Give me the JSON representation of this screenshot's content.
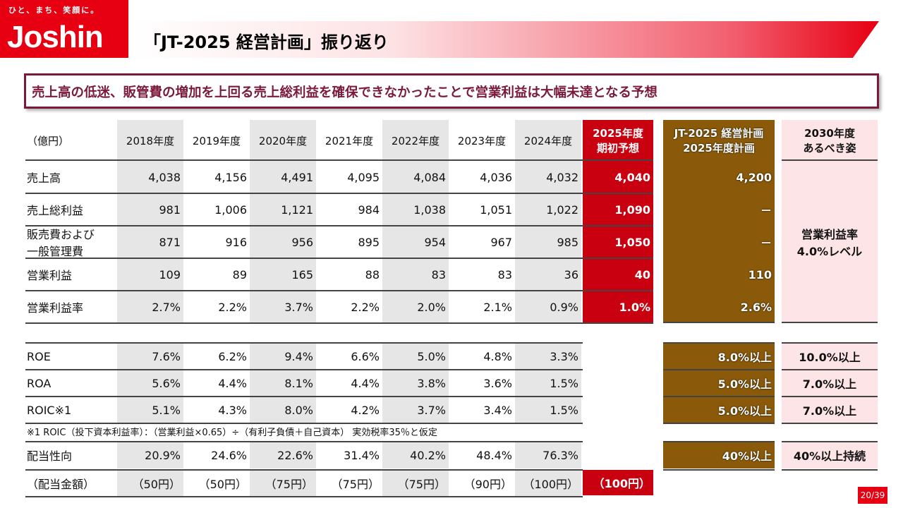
{
  "logo": {
    "tagline": "ひと、まち、笑顔に。",
    "name": "Joshin"
  },
  "title": "「JT-2025 経営計画」振り返り",
  "banner": "売上高の低迷、販管費の増加を上回る売上総利益を確保できなかったことで営業利益は大幅未達となる予想",
  "unit_label": "（億円）",
  "year_headers": [
    "2018年度",
    "2019年度",
    "2020年度",
    "2021年度",
    "2022年度",
    "2023年度",
    "2024年度"
  ],
  "forecast_header": [
    "2025年度",
    "期初予想"
  ],
  "plan_header": [
    "JT-2025 経営計画",
    "2025年度計画"
  ],
  "ideal_header": [
    "2030年度",
    "あるべき姿"
  ],
  "rows_top": [
    {
      "label": [
        "売上高"
      ],
      "values": [
        "4,038",
        "4,156",
        "4,491",
        "4,095",
        "4,084",
        "4,036",
        "4,032"
      ],
      "forecast": "4,040",
      "plan": "4,200"
    },
    {
      "label": [
        "売上総利益"
      ],
      "values": [
        "981",
        "1,006",
        "1,121",
        "984",
        "1,038",
        "1,051",
        "1,022"
      ],
      "forecast": "1,090",
      "plan": "－"
    },
    {
      "label": [
        "販売費および",
        "一般管理費"
      ],
      "values": [
        "871",
        "916",
        "956",
        "895",
        "954",
        "967",
        "985"
      ],
      "forecast": "1,050",
      "plan": "－"
    },
    {
      "label": [
        "営業利益"
      ],
      "values": [
        "109",
        "89",
        "165",
        "88",
        "83",
        "83",
        "36"
      ],
      "forecast": "40",
      "plan": "110"
    },
    {
      "label": [
        "営業利益率"
      ],
      "values": [
        "2.7%",
        "2.2%",
        "3.7%",
        "2.2%",
        "2.0%",
        "2.1%",
        "0.9%"
      ],
      "forecast": "1.0%",
      "plan": "2.6%"
    }
  ],
  "ideal_merged": [
    "営業利益率",
    "4.0%レベル"
  ],
  "rows_bottom": [
    {
      "label": "ROE",
      "values": [
        "7.6%",
        "6.2%",
        "9.4%",
        "6.6%",
        "5.0%",
        "4.8%",
        "3.3%"
      ],
      "plan": "8.0%以上",
      "ideal": "10.0%以上"
    },
    {
      "label": "ROA",
      "values": [
        "5.6%",
        "4.4%",
        "8.1%",
        "4.4%",
        "3.8%",
        "3.6%",
        "1.5%"
      ],
      "plan": "5.0%以上",
      "ideal": "7.0%以上"
    },
    {
      "label": "ROIC※1",
      "values": [
        "5.1%",
        "4.3%",
        "8.0%",
        "4.2%",
        "3.7%",
        "3.4%",
        "1.5%"
      ],
      "plan": "5.0%以上",
      "ideal": "7.0%以上"
    }
  ],
  "footnote": "※1  ROIC（投下資本利益率）：（営業利益×0.65）÷（有利子負債＋自己資本）  実効税率35％と仮定",
  "payout_row": {
    "label": "配当性向",
    "values": [
      "20.9%",
      "24.6%",
      "22.6%",
      "31.4%",
      "40.2%",
      "48.4%",
      "76.3%"
    ],
    "plan": "40%以上",
    "ideal": "40%以上持続"
  },
  "dividend_row": {
    "label": "（配当金額）",
    "values": [
      "（50円）",
      "（50円）",
      "（75円）",
      "（75円）",
      "（75円）",
      "（90円）",
      "（100円）"
    ],
    "forecast": "（100円）"
  },
  "page_number": "20/39"
}
